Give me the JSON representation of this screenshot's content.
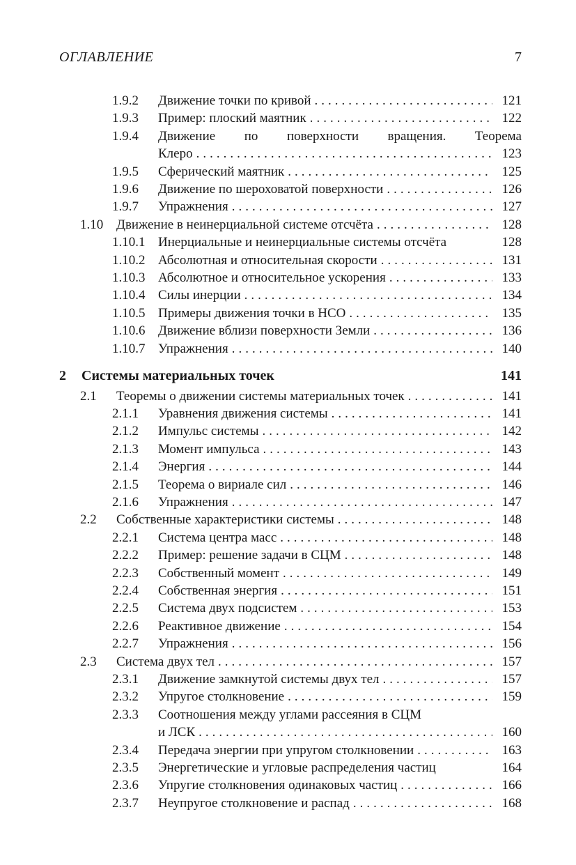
{
  "colors": {
    "background": "#ffffff",
    "text": "#1a1a1a"
  },
  "header": {
    "title": "ОГЛАВЛЕНИЕ",
    "page_number": "7"
  },
  "toc": {
    "entries": [
      {
        "level": "subsection",
        "number": "1.9.2",
        "lines": [
          {
            "text": "Движение точки по кривой",
            "dots": true,
            "page": "121"
          }
        ]
      },
      {
        "level": "subsection",
        "number": "1.9.3",
        "lines": [
          {
            "text": "Пример: плоский маятник",
            "dots": true,
            "page": "122"
          }
        ]
      },
      {
        "level": "subsection",
        "number": "1.9.4",
        "lines": [
          {
            "text": "Движение по поверхности вращения. Теорема",
            "justify": true
          },
          {
            "text": "Клеро",
            "dots": true,
            "page": "123"
          }
        ]
      },
      {
        "level": "subsection",
        "number": "1.9.5",
        "lines": [
          {
            "text": "Сферический маятник",
            "dots": true,
            "page": "125"
          }
        ]
      },
      {
        "level": "subsection",
        "number": "1.9.6",
        "lines": [
          {
            "text": "Движение по шероховатой поверхности",
            "dots": true,
            "page": "126"
          }
        ]
      },
      {
        "level": "subsection",
        "number": "1.9.7",
        "lines": [
          {
            "text": "Упражнения",
            "dots": true,
            "page": "127"
          }
        ]
      },
      {
        "level": "section",
        "number": "1.10",
        "lines": [
          {
            "text": "Движение в неинерциальной системе отсчёта",
            "dots": true,
            "page": "128"
          }
        ]
      },
      {
        "level": "subsection",
        "number": "1.10.1",
        "lines": [
          {
            "text": "Инерциальные и неинерциальные системы отсчёта",
            "dots": false,
            "page": "128"
          }
        ]
      },
      {
        "level": "subsection",
        "number": "1.10.2",
        "lines": [
          {
            "text": "Абсолютная и относительная скорости",
            "dots": true,
            "page": "131"
          }
        ]
      },
      {
        "level": "subsection",
        "number": "1.10.3",
        "lines": [
          {
            "text": "Абсолютное и относительное ускорения",
            "dots": true,
            "page": "133"
          }
        ]
      },
      {
        "level": "subsection",
        "number": "1.10.4",
        "lines": [
          {
            "text": "Силы инерции",
            "dots": true,
            "page": "134"
          }
        ]
      },
      {
        "level": "subsection",
        "number": "1.10.5",
        "lines": [
          {
            "text": "Примеры движения точки в НСО",
            "dots": true,
            "page": "135"
          }
        ]
      },
      {
        "level": "subsection",
        "number": "1.10.6",
        "lines": [
          {
            "text": "Движение вблизи поверхности Земли",
            "dots": true,
            "page": "136"
          }
        ]
      },
      {
        "level": "subsection",
        "number": "1.10.7",
        "lines": [
          {
            "text": "Упражнения",
            "dots": true,
            "page": "140"
          }
        ]
      },
      {
        "level": "chapter",
        "number": "2",
        "lines": [
          {
            "text": "Системы материальных точек",
            "dots": false,
            "page": "141"
          }
        ]
      },
      {
        "level": "section",
        "number": "2.1",
        "lines": [
          {
            "text": "Теоремы о движении системы материальных точек",
            "dots": true,
            "page": "141"
          }
        ]
      },
      {
        "level": "subsection",
        "number": "2.1.1",
        "lines": [
          {
            "text": "Уравнения движения системы",
            "dots": true,
            "page": "141"
          }
        ]
      },
      {
        "level": "subsection",
        "number": "2.1.2",
        "lines": [
          {
            "text": "Импульс системы",
            "dots": true,
            "page": "142"
          }
        ]
      },
      {
        "level": "subsection",
        "number": "2.1.3",
        "lines": [
          {
            "text": "Момент импульса",
            "dots": true,
            "page": "143"
          }
        ]
      },
      {
        "level": "subsection",
        "number": "2.1.4",
        "lines": [
          {
            "text": "Энергия",
            "dots": true,
            "page": "144"
          }
        ]
      },
      {
        "level": "subsection",
        "number": "2.1.5",
        "lines": [
          {
            "text": "Теорема о вириале сил",
            "dots": true,
            "page": "146"
          }
        ]
      },
      {
        "level": "subsection",
        "number": "2.1.6",
        "lines": [
          {
            "text": "Упражнения",
            "dots": true,
            "page": "147"
          }
        ]
      },
      {
        "level": "section",
        "number": "2.2",
        "lines": [
          {
            "text": "Собственные характеристики системы",
            "dots": true,
            "page": "148"
          }
        ]
      },
      {
        "level": "subsection",
        "number": "2.2.1",
        "lines": [
          {
            "text": "Система центра масс",
            "dots": true,
            "page": "148"
          }
        ]
      },
      {
        "level": "subsection",
        "number": "2.2.2",
        "lines": [
          {
            "text": "Пример: решение задачи в СЦМ",
            "dots": true,
            "page": "148"
          }
        ]
      },
      {
        "level": "subsection",
        "number": "2.2.3",
        "lines": [
          {
            "text": "Собственный момент",
            "dots": true,
            "page": "149"
          }
        ]
      },
      {
        "level": "subsection",
        "number": "2.2.4",
        "lines": [
          {
            "text": "Собственная энергия",
            "dots": true,
            "page": "151"
          }
        ]
      },
      {
        "level": "subsection",
        "number": "2.2.5",
        "lines": [
          {
            "text": "Система двух подсистем",
            "dots": true,
            "page": "153"
          }
        ]
      },
      {
        "level": "subsection",
        "number": "2.2.6",
        "lines": [
          {
            "text": "Реактивное движение",
            "dots": true,
            "page": "154"
          }
        ]
      },
      {
        "level": "subsection",
        "number": "2.2.7",
        "lines": [
          {
            "text": "Упражнения",
            "dots": true,
            "page": "156"
          }
        ]
      },
      {
        "level": "section",
        "number": "2.3",
        "lines": [
          {
            "text": "Система двух тел",
            "dots": true,
            "page": "157"
          }
        ]
      },
      {
        "level": "subsection",
        "number": "2.3.1",
        "lines": [
          {
            "text": "Движение замкнутой системы двух тел",
            "dots": true,
            "page": "157"
          }
        ]
      },
      {
        "level": "subsection",
        "number": "2.3.2",
        "lines": [
          {
            "text": "Упругое столкновение",
            "dots": true,
            "page": "159"
          }
        ]
      },
      {
        "level": "subsection",
        "number": "2.3.3",
        "lines": [
          {
            "text": "Соотношения между углами рассеяния в СЦМ"
          },
          {
            "text": "и ЛСК",
            "dots": true,
            "page": "160"
          }
        ]
      },
      {
        "level": "subsection",
        "number": "2.3.4",
        "lines": [
          {
            "text": "Передача энергии при упругом столкновении",
            "dots": true,
            "page": "163"
          }
        ]
      },
      {
        "level": "subsection",
        "number": "2.3.5",
        "lines": [
          {
            "text": "Энергетические и угловые распределения частиц",
            "dots": false,
            "page": "164"
          }
        ]
      },
      {
        "level": "subsection",
        "number": "2.3.6",
        "lines": [
          {
            "text": "Упругие столкновения одинаковых частиц",
            "dots": true,
            "page": "166"
          }
        ]
      },
      {
        "level": "subsection",
        "number": "2.3.7",
        "lines": [
          {
            "text": "Неупругое столкновение и распад",
            "dots": true,
            "page": "168"
          }
        ]
      }
    ]
  }
}
